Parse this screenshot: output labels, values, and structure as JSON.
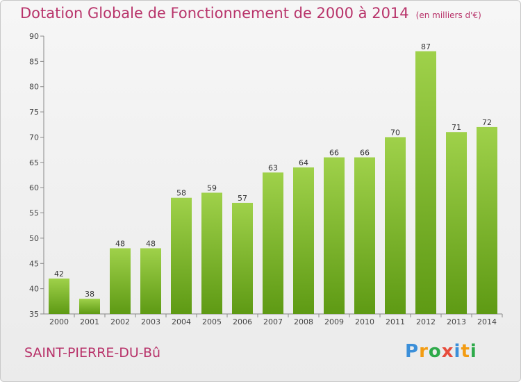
{
  "header": {
    "title": "Dotation Globale de Fonctionnement de 2000 à 2014",
    "unit": "(en milliers d'€)"
  },
  "footer": {
    "commune": "SAINT-PIERRE-DU-Bû",
    "logo_letters": [
      "P",
      "r",
      "o",
      "x",
      "i",
      "t",
      "i"
    ],
    "logo_colors": [
      "#3b8fd9",
      "#f39c12",
      "#2eaa4a",
      "#e74c3c",
      "#3b8fd9",
      "#f39c12",
      "#2eaa4a"
    ]
  },
  "chart_data": {
    "type": "bar",
    "title": "Dotation Globale de Fonctionnement de 2000 à 2014",
    "categories": [
      "2000",
      "2001",
      "2002",
      "2003",
      "2004",
      "2005",
      "2006",
      "2007",
      "2008",
      "2009",
      "2010",
      "2011",
      "2012",
      "2013",
      "2014"
    ],
    "values": [
      42,
      38,
      48,
      48,
      58,
      59,
      57,
      63,
      64,
      66,
      66,
      70,
      87,
      71,
      72
    ],
    "ylim": [
      35,
      90
    ],
    "yticks": [
      35,
      40,
      45,
      50,
      55,
      60,
      65,
      70,
      75,
      80,
      85,
      90
    ],
    "grid": false,
    "bar_color_top": "#9fd14a",
    "bar_color_bottom": "#5e9a14"
  }
}
